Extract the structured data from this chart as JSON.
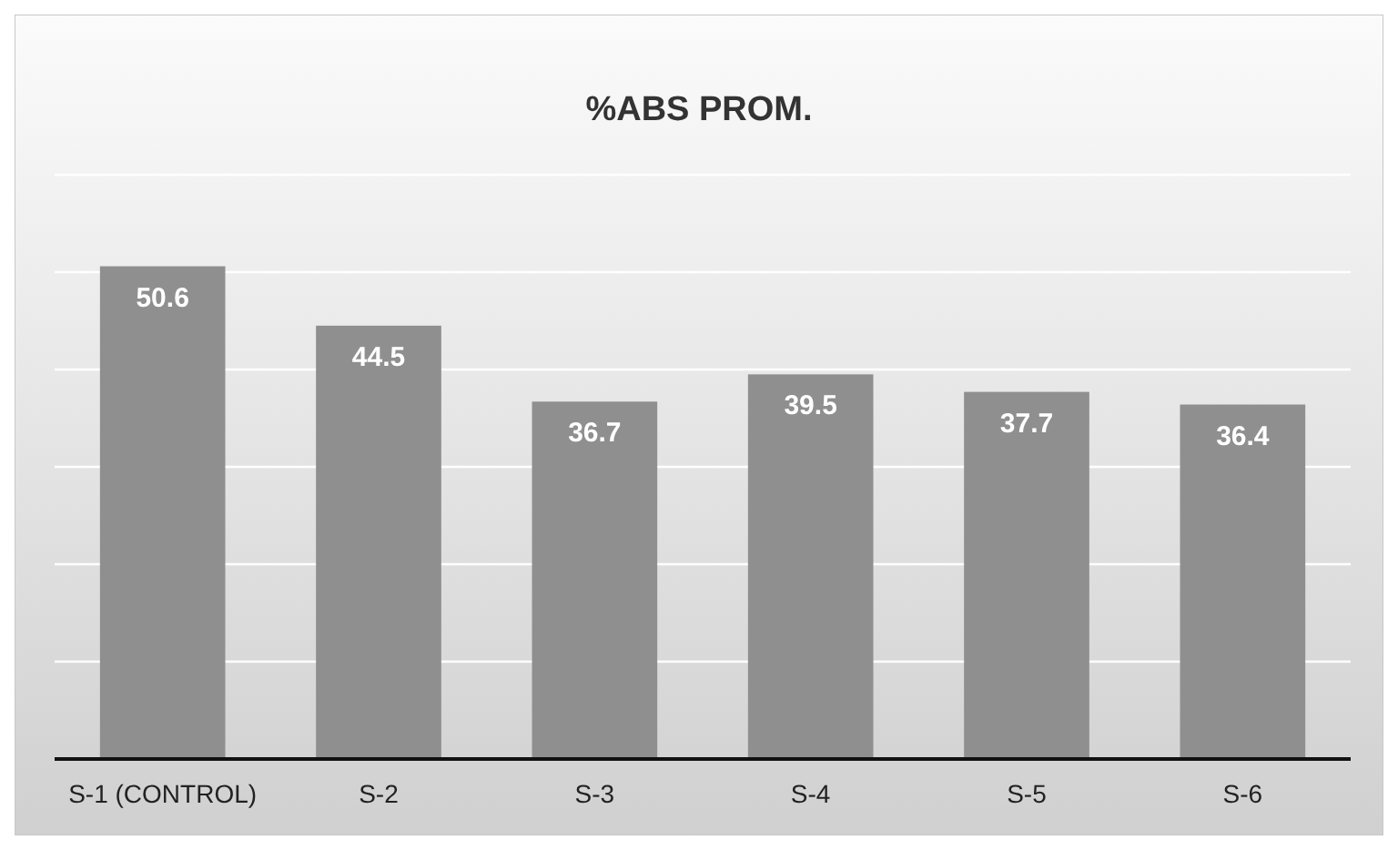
{
  "chart_data": {
    "type": "bar",
    "title": "%ABS PROM.",
    "categories": [
      "S-1 (CONTROL)",
      "S-2",
      "S-3",
      "S-4",
      "S-5",
      "S-6"
    ],
    "values": [
      50.6,
      44.5,
      36.7,
      39.5,
      37.7,
      36.4
    ],
    "color": "#8f8f8f",
    "ylim": [
      0,
      60
    ],
    "yticks": [
      {
        "value": 0,
        "label": null
      },
      {
        "value": 10,
        "label": null
      },
      {
        "value": 20,
        "label": null
      },
      {
        "value": 30,
        "label": null
      },
      {
        "value": 40,
        "label": null
      },
      {
        "value": 50,
        "label": null
      },
      {
        "value": 60,
        "label": null
      }
    ],
    "grid": "y",
    "tick_labels": "x",
    "data_labels": true
  }
}
